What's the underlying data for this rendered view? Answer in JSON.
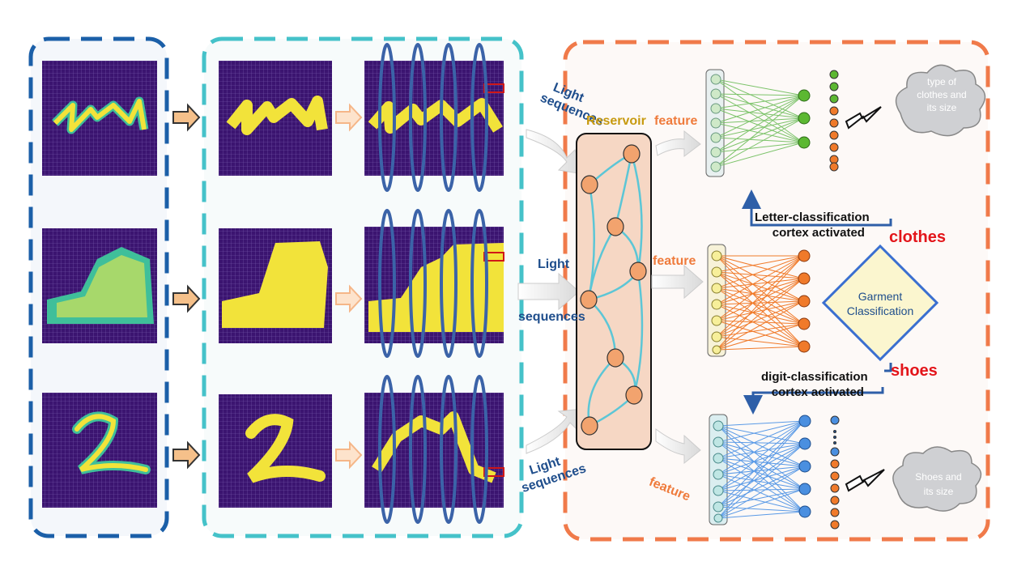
{
  "labels": {
    "light_sequences_1": [
      "Light",
      "sequences"
    ],
    "light_2": "Light",
    "sequences_2": "sequences",
    "light_sequences_3": [
      "Light",
      "sequences"
    ],
    "reservoir": "Reservoir",
    "feature_1": "feature",
    "feature_2": "feature",
    "feature_3": "feature",
    "letter_cortex": [
      "Letter-classification",
      "cortex activated"
    ],
    "digit_cortex": [
      "digit-classification",
      "cortex activated"
    ],
    "clothes": "clothes",
    "shoes": "shoes",
    "garment": [
      "Garment",
      "Classification"
    ],
    "cloud_top": [
      "type of",
      "clothes and",
      "its size"
    ],
    "cloud_bottom": [
      "Shoes and",
      "its size"
    ]
  },
  "colors": {
    "grid_bg": "#3b1470",
    "grid_line": "#7a5fb0",
    "yellow": "#f2e33a",
    "teal": "#3fbf9a",
    "blue_dash": "#1b5fa8",
    "cyan_dash": "#45c2c9",
    "orange_dash": "#f07a4a",
    "reservoir_fill": "#f6d7c4",
    "node": "#f2a36e",
    "green": "#6bbf3a",
    "orange": "#f07a2a",
    "blue": "#4a8fe0"
  }
}
